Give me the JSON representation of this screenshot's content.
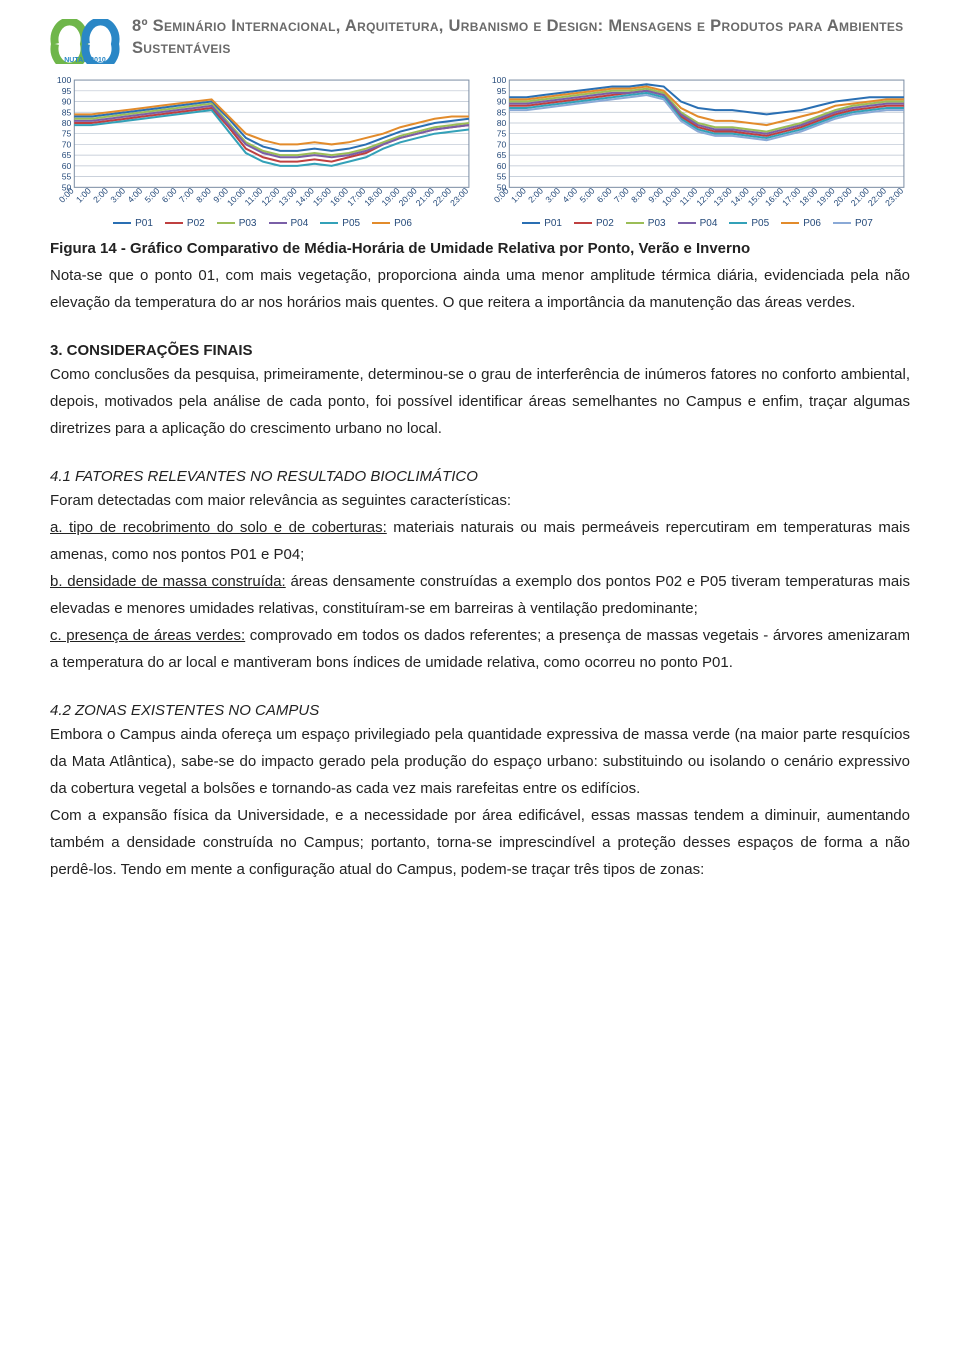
{
  "header": {
    "title": "8º Seminário Internacional, Arquitetura, Urbanismo e Design: Mensagens e Produtos para Ambientes Sustentáveis",
    "logo_colors": {
      "left": "#6fb64a",
      "right": "#2a87c6",
      "text": "#2a87c6"
    },
    "logo_text": "NUTAU 2010"
  },
  "figure": {
    "caption": "Figura 14 - Gráfico Comparativo de Média-Horária de Umidade Relativa por Ponto, Verão e Inverno",
    "note": "Nota-se que o ponto 01, com mais vegetação, proporciona ainda uma menor amplitude térmica diária, evidenciada pela não elevação da temperatura do ar nos horários mais quentes. O que reitera a importância da manutenção das áreas verdes."
  },
  "charts": {
    "ylim": [
      50,
      100
    ],
    "yticks": [
      50,
      55,
      60,
      65,
      70,
      75,
      80,
      85,
      90,
      95,
      100
    ],
    "xticks": [
      "0:00",
      "1:00",
      "2:00",
      "3:00",
      "4:00",
      "5:00",
      "6:00",
      "7:00",
      "8:00",
      "9:00",
      "10:00",
      "11:00",
      "12:00",
      "13:00",
      "14:00",
      "15:00",
      "16:00",
      "17:00",
      "18:00",
      "19:00",
      "20:00",
      "21:00",
      "22:00",
      "23:00"
    ],
    "axis_text_color": "#254a7a",
    "grid_color": "#b8c2cf",
    "border_color": "#7d8fa5",
    "background_color": "#ffffff",
    "line_width": 2,
    "axis_fontsize": 8.5,
    "left": {
      "type": "line",
      "series": [
        {
          "name": "P01",
          "color": "#2a6fb3",
          "values": [
            83,
            83,
            84,
            85,
            86,
            87,
            88,
            89,
            90,
            82,
            73,
            69,
            67,
            67,
            68,
            67,
            68,
            70,
            73,
            76,
            78,
            80,
            81,
            82
          ]
        },
        {
          "name": "P02",
          "color": "#bf4040",
          "values": [
            80,
            80,
            81,
            82,
            83,
            84,
            85,
            86,
            87,
            78,
            68,
            64,
            62,
            62,
            63,
            62,
            64,
            66,
            70,
            73,
            75,
            77,
            78,
            79
          ]
        },
        {
          "name": "P03",
          "color": "#9bbd57",
          "values": [
            82,
            82,
            83,
            84,
            85,
            86,
            87,
            88,
            89,
            80,
            71,
            67,
            65,
            65,
            66,
            65,
            66,
            68,
            71,
            74,
            76,
            78,
            79,
            80
          ]
        },
        {
          "name": "P04",
          "color": "#7a5fa7",
          "values": [
            81,
            81,
            82,
            83,
            84,
            85,
            86,
            87,
            88,
            79,
            70,
            66,
            64,
            64,
            65,
            64,
            65,
            67,
            70,
            73,
            75,
            77,
            78,
            79
          ]
        },
        {
          "name": "P05",
          "color": "#33a1b8",
          "values": [
            79,
            79,
            80,
            81,
            82,
            83,
            84,
            85,
            86,
            76,
            66,
            62,
            60,
            60,
            61,
            60,
            62,
            64,
            68,
            71,
            73,
            75,
            76,
            77
          ]
        },
        {
          "name": "P06",
          "color": "#e28b2b",
          "values": [
            84,
            84,
            85,
            86,
            87,
            88,
            89,
            90,
            91,
            83,
            75,
            72,
            70,
            70,
            71,
            70,
            71,
            73,
            75,
            78,
            80,
            82,
            83,
            83
          ]
        }
      ]
    },
    "right": {
      "type": "line",
      "series": [
        {
          "name": "P01",
          "color": "#2a6fb3",
          "values": [
            92,
            92,
            93,
            94,
            95,
            96,
            97,
            97,
            98,
            97,
            90,
            87,
            86,
            86,
            85,
            84,
            85,
            86,
            88,
            90,
            91,
            92,
            92,
            92
          ]
        },
        {
          "name": "P02",
          "color": "#bf4040",
          "values": [
            88,
            88,
            89,
            90,
            91,
            92,
            93,
            94,
            95,
            93,
            83,
            78,
            76,
            76,
            75,
            74,
            76,
            78,
            81,
            84,
            86,
            87,
            88,
            88
          ]
        },
        {
          "name": "P03",
          "color": "#9bbd57",
          "values": [
            90,
            90,
            91,
            92,
            93,
            94,
            95,
            95,
            96,
            94,
            85,
            80,
            78,
            78,
            77,
            76,
            78,
            80,
            83,
            86,
            88,
            89,
            90,
            90
          ]
        },
        {
          "name": "P04",
          "color": "#7a5fa7",
          "values": [
            89,
            89,
            90,
            91,
            92,
            93,
            94,
            94,
            95,
            93,
            84,
            79,
            77,
            77,
            76,
            75,
            77,
            79,
            82,
            85,
            87,
            88,
            89,
            89
          ]
        },
        {
          "name": "P05",
          "color": "#33a1b8",
          "values": [
            87,
            87,
            88,
            89,
            90,
            91,
            92,
            93,
            94,
            92,
            82,
            77,
            75,
            75,
            74,
            73,
            75,
            77,
            80,
            83,
            85,
            86,
            87,
            87
          ]
        },
        {
          "name": "P06",
          "color": "#e28b2b",
          "values": [
            91,
            91,
            92,
            93,
            94,
            95,
            96,
            96,
            97,
            95,
            87,
            83,
            81,
            81,
            80,
            79,
            81,
            83,
            85,
            88,
            89,
            90,
            91,
            91
          ]
        },
        {
          "name": "P07",
          "color": "#8aa9d6",
          "values": [
            86,
            86,
            87,
            88,
            89,
            90,
            91,
            92,
            93,
            91,
            81,
            76,
            74,
            74,
            73,
            72,
            74,
            76,
            79,
            82,
            84,
            85,
            86,
            86
          ]
        }
      ]
    }
  },
  "sections": {
    "s3": {
      "title": "3. CONSIDERAÇÕES FINAIS",
      "body": "Como conclusões da pesquisa, primeiramente, determinou-se o grau de interferência de inúmeros fatores no conforto ambiental, depois, motivados pela análise de cada ponto, foi possível identificar áreas semelhantes no Campus e enfim, traçar algumas diretrizes para a aplicação do crescimento urbano no local."
    },
    "s41": {
      "title": "4.1 FATORES RELEVANTES NO RESULTADO BIOCLIMÁTICO",
      "intro": "Foram detectadas com maior relevância as seguintes características:",
      "a_u": "a. tipo de recobrimento do solo e de coberturas:",
      "a_rest": " materiais naturais ou mais permeáveis repercutiram em temperaturas mais amenas, como nos pontos P01 e P04;",
      "b_u": "b. densidade de massa construída:",
      "b_rest": " áreas densamente construídas a exemplo dos pontos P02 e P05 tiveram temperaturas mais elevadas e menores umidades relativas, constituíram-se em barreiras à ventilação predominante;",
      "c_u": "c. presença de áreas verdes:",
      "c_rest": " comprovado em todos os dados referentes; a presença de massas vegetais - árvores amenizaram a temperatura do ar local e mantiveram bons índices de umidade relativa, como ocorreu no ponto P01."
    },
    "s42": {
      "title": "4.2 ZONAS EXISTENTES NO CAMPUS",
      "p1": "Embora o Campus ainda ofereça um espaço privilegiado pela quantidade expressiva de massa verde (na maior parte resquícios da Mata Atlântica), sabe-se do impacto gerado pela produção do espaço urbano: substituindo ou isolando o cenário expressivo da cobertura vegetal a bolsões e tornando-as cada vez mais rarefeitas entre os edifícios.",
      "p2": "Com a expansão física da Universidade, e a necessidade por área edificável, essas massas tendem a diminuir, aumentando também a densidade construída no Campus; portanto, torna-se imprescindível a proteção desses espaços de forma a não perdê-los. Tendo em mente a configuração atual do Campus, podem-se traçar três tipos de zonas:"
    }
  }
}
